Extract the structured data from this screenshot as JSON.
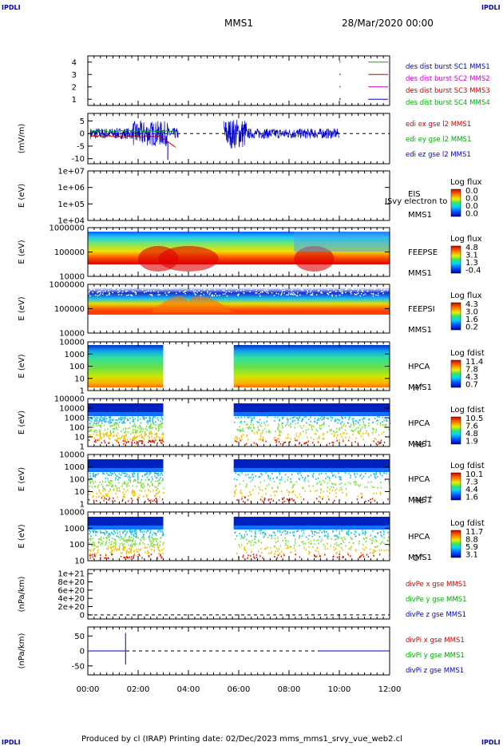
{
  "corners": {
    "tl": "IPDLI",
    "tr": "IPDLI",
    "bl": "IPDLI",
    "br": "IPDLI"
  },
  "header": {
    "spacecraft": "MMS1",
    "datetime": "28/Mar/2020 00:00"
  },
  "footer": "Produced by cl (IRAP)   Printing date: 02/Dec/2023   mms_mms1_srvy_vue_web2.cl",
  "chart_data": [
    {
      "type": "line",
      "panel": "burst-flags",
      "yticks": [
        "4",
        "3",
        "2",
        "1"
      ],
      "ylim": [
        0.5,
        4.5
      ],
      "series": [
        {
          "name": "des dist burst SC1 MMS1",
          "color": "#0000cc",
          "value": 4,
          "segment_hours": [
            10.95,
            12
          ]
        },
        {
          "name": "des dist burst SC2 MMS2",
          "color": "#cc00cc",
          "value": 3,
          "segment_hours": [
            10.95,
            12
          ]
        },
        {
          "name": "des dist burst SC3 MMS3",
          "color": "#cc0000",
          "value": 2,
          "segment_hours": [
            10.95,
            12
          ]
        },
        {
          "name": "des dist burst SC4 MMS4",
          "color": "#00aa00",
          "value": 1,
          "segment_hours": [
            10.95,
            12
          ]
        }
      ]
    },
    {
      "type": "line",
      "panel": "electric-field",
      "ylabel": "(mV/m)",
      "yticks": [
        "5",
        "0",
        "-5",
        "-10"
      ],
      "ylim": [
        -12,
        8
      ],
      "series": [
        {
          "name": "edi ex gse l2 MMS1",
          "color": "#cc0000"
        },
        {
          "name": "edi ey gse l2 MMS1",
          "color": "#00aa00"
        },
        {
          "name": "edi ez gse l2 MMS1",
          "color": "#0000cc"
        }
      ]
    },
    {
      "type": "heatmap",
      "panel": "eis",
      "ylabel": "E (eV)",
      "yticks": [
        "1e+07",
        "1e+06",
        "1e+05",
        "1e+04"
      ],
      "label_lines": [
        "EIS",
        "MMS1"
      ],
      "overlay_text": "ISvy electron to",
      "colorbar_title": "Log flux",
      "colorbar_ticks": [
        "0.0",
        "0.0",
        "0.0",
        "0.0"
      ],
      "empty": true
    },
    {
      "type": "heatmap",
      "panel": "feepse",
      "ylabel": "E (eV)",
      "yticks": [
        "1000000",
        "100000",
        "10000"
      ],
      "label_lines": [
        "FEEPSE",
        "MMS1"
      ],
      "colorbar_title": "Log flux",
      "colorbar_ticks": [
        "4.8",
        "3.1",
        "1.3",
        "-0.4"
      ]
    },
    {
      "type": "heatmap",
      "panel": "feepsi",
      "ylabel": "E (eV)",
      "yticks": [
        "1000000",
        "100000",
        "10000"
      ],
      "label_lines": [
        "FEEPSI",
        "MMS1"
      ],
      "colorbar_title": "Log flux",
      "colorbar_ticks": [
        "4.3",
        "3.0",
        "1.6",
        "0.2"
      ]
    },
    {
      "type": "heatmap",
      "panel": "hpca-h",
      "ylabel": "E (eV)",
      "yticks": [
        "10000",
        "1000",
        "100",
        "10",
        "1"
      ],
      "label_lines": [
        "HPCA",
        "MMS1"
      ],
      "species": "H",
      "charge": "+",
      "colorbar_title": "Log fdist",
      "colorbar_ticks": [
        "11.4",
        "7.8",
        "4.3",
        "0.7"
      ],
      "gap_hours": [
        3.0,
        5.8
      ]
    },
    {
      "type": "heatmap",
      "panel": "hpca-he1",
      "ylabel": "E (eV)",
      "yticks": [
        "100000",
        "10000",
        "1000",
        "100",
        "10",
        "1"
      ],
      "label_lines": [
        "HPCA",
        "MMS1"
      ],
      "species": "He",
      "charge": "+",
      "colorbar_title": "Log fdist",
      "colorbar_ticks": [
        "10.5",
        "7.6",
        "4.8",
        "1.9"
      ],
      "gap_hours": [
        3.0,
        5.8
      ]
    },
    {
      "type": "heatmap",
      "panel": "hpca-he2",
      "ylabel": "E (eV)",
      "yticks": [
        "10000",
        "1000",
        "100",
        "10",
        "1"
      ],
      "label_lines": [
        "HPCA",
        "MMS1"
      ],
      "species": "He",
      "charge": "++",
      "colorbar_title": "Log fdist",
      "colorbar_ticks": [
        "10.1",
        "7.3",
        "4.4",
        "1.6"
      ],
      "gap_hours": [
        3.0,
        5.8
      ]
    },
    {
      "type": "heatmap",
      "panel": "hpca-o",
      "ylabel": "E (eV)",
      "yticks": [
        "10000",
        "1000",
        "100",
        "10"
      ],
      "label_lines": [
        "HPCA",
        "MMS1"
      ],
      "species": "O",
      "charge": "+",
      "colorbar_title": "Log fdist",
      "colorbar_ticks": [
        "11.7",
        "8.8",
        "5.9",
        "3.1"
      ],
      "gap_hours": [
        3.0,
        5.8
      ]
    },
    {
      "type": "line",
      "panel": "div-pe",
      "ylabel": "(nPa/km)",
      "yticks": [
        "1e+21",
        "8e+20",
        "6e+20",
        "4e+20",
        "2e+20",
        "0"
      ],
      "ylim": [
        -1e+20,
        1.1e+21
      ],
      "series": [
        {
          "name": "divPe x gse MMS1",
          "color": "#cc0000"
        },
        {
          "name": "divPe y gse MMS1",
          "color": "#00aa00"
        },
        {
          "name": "divPe z gse MMS1",
          "color": "#0000cc"
        }
      ]
    },
    {
      "type": "line",
      "panel": "div-pi",
      "ylabel": "(nPa/km)",
      "yticks": [
        "50",
        "0",
        "-50"
      ],
      "ylim": [
        -80,
        80
      ],
      "series": [
        {
          "name": "divPi x gse MMS1",
          "color": "#cc0000"
        },
        {
          "name": "divPi y gse MMS1",
          "color": "#00aa00"
        },
        {
          "name": "divPi z gse MMS1",
          "color": "#0000cc"
        }
      ],
      "spike_hour": 1.5,
      "spike_range": [
        -45,
        60
      ]
    }
  ],
  "time_axis": {
    "range_hours": [
      0,
      12
    ],
    "ticks": [
      "00:00",
      "02:00",
      "04:00",
      "06:00",
      "08:00",
      "10:00",
      "12:00"
    ]
  }
}
